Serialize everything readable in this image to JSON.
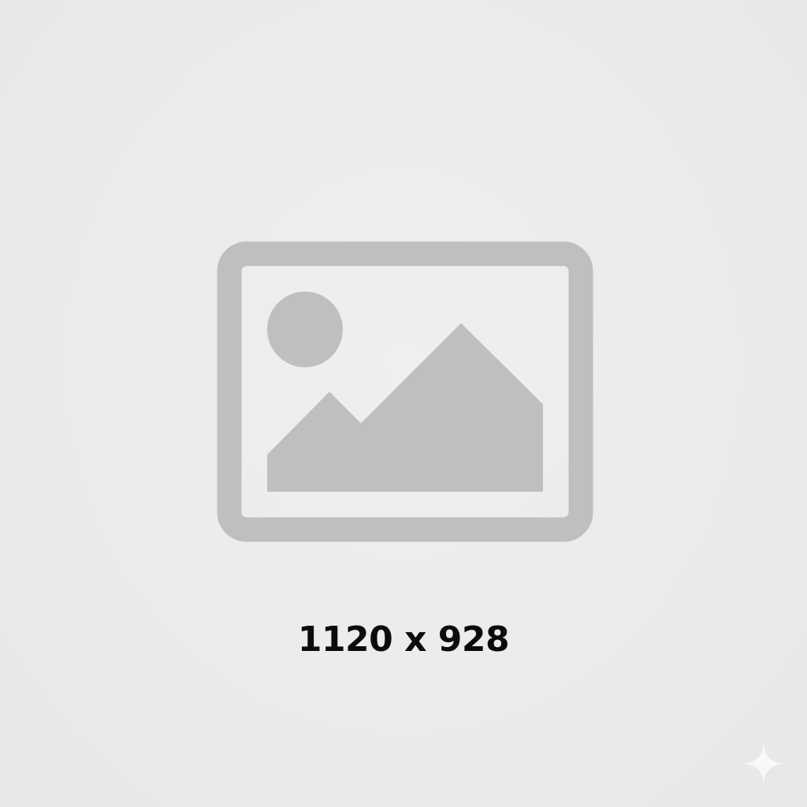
{
  "placeholder": {
    "icon": "image-placeholder-icon",
    "dimensions_label": "1120 x 928"
  },
  "watermark": {
    "icon": "sparkle-icon"
  },
  "colors": {
    "background": "#e9eaec",
    "icon_gray": "#bdbfc1",
    "label_text": "#0b0b0b",
    "sparkle": "#f7f8f9"
  }
}
